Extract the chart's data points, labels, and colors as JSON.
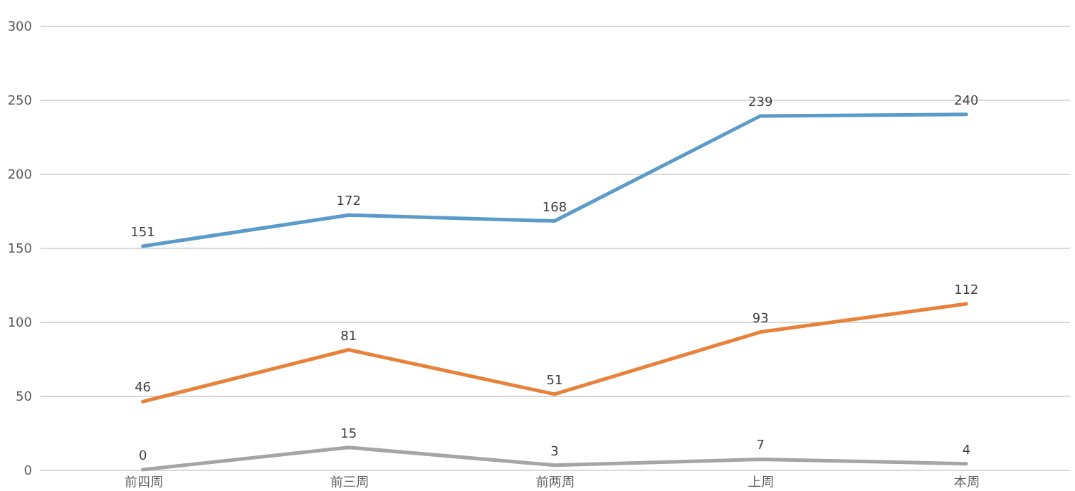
{
  "chart_data": {
    "type": "line",
    "categories": [
      "前四周",
      "前三周",
      "前两周",
      "上周",
      "本周"
    ],
    "series": [
      {
        "color": "#5b9bc9",
        "values": [
          151,
          172,
          168,
          239,
          240
        ]
      },
      {
        "color": "#e8823a",
        "values": [
          46,
          81,
          51,
          93,
          112
        ]
      },
      {
        "color": "#a5a5a5",
        "values": [
          0,
          15,
          3,
          7,
          4
        ]
      }
    ],
    "ylim": [
      0,
      300
    ],
    "yticks": [
      0,
      50,
      100,
      150,
      200,
      250,
      300
    ],
    "grid": "y",
    "data_labels": true,
    "marker": "none",
    "line_style": "solid"
  }
}
